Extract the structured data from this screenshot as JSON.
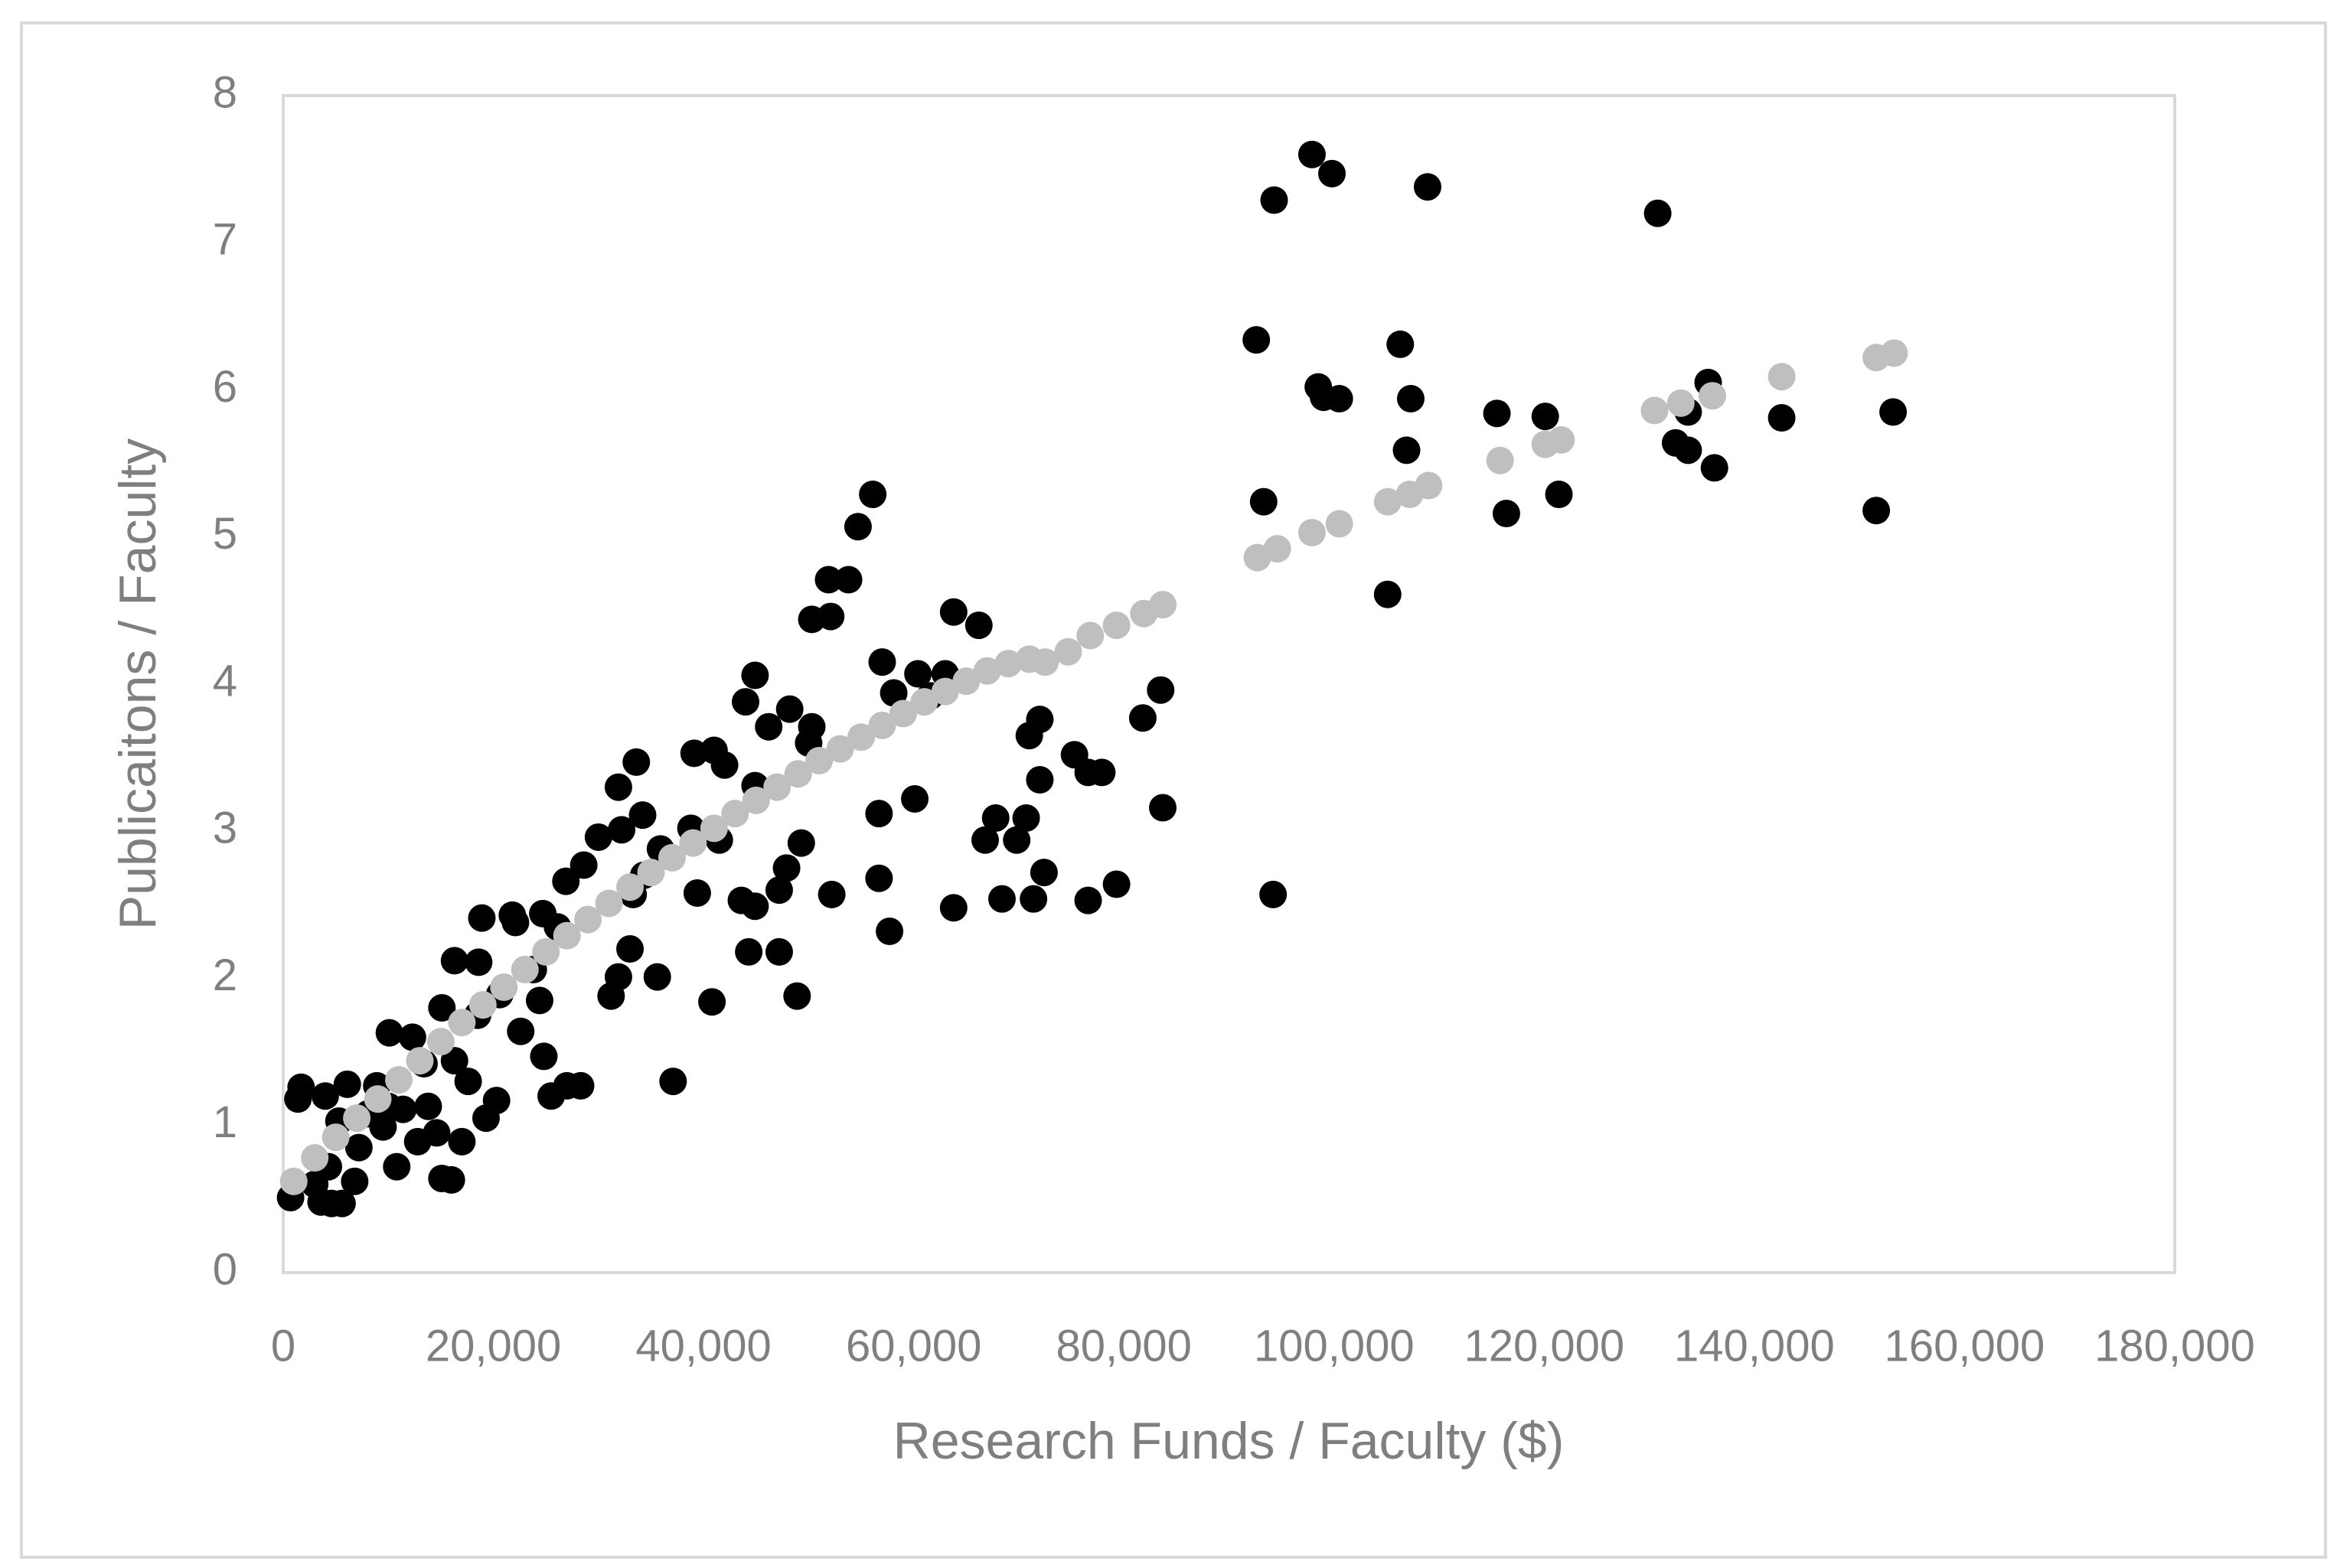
{
  "chart_data": {
    "type": "scatter",
    "xlabel": "Research Funds / Faculty ($)",
    "ylabel": "Publicaitons / Faculty",
    "xlim": [
      0,
      180000
    ],
    "ylim": [
      0,
      8
    ],
    "xticks": [
      0,
      {
        "value": 20000,
        "label": "20,000"
      },
      {
        "value": 40000,
        "label": "40,000"
      },
      {
        "value": 60000,
        "label": "60,000"
      },
      {
        "value": 80000,
        "label": "80,000"
      },
      {
        "value": 100000,
        "label": "100,000"
      },
      {
        "value": 120000,
        "label": "120,000"
      },
      {
        "value": 140000,
        "label": "140,000"
      },
      {
        "value": 160000,
        "label": "160,000"
      },
      {
        "value": 180000,
        "label": "180,000"
      }
    ],
    "yticks": [
      0,
      1,
      2,
      3,
      4,
      5,
      6,
      7,
      8
    ],
    "grid": false,
    "series": [
      {
        "color": "#000000",
        "x": [
          92600,
          93300,
          94300,
          94200,
          97900,
          98500,
          99000,
          99800,
          100500,
          105100,
          106300,
          106900,
          107300,
          108900,
          115500,
          116400,
          120100,
          121400,
          130800,
          132500,
          133700,
          133700,
          135600,
          136200,
          142600,
          151600,
          153200,
          83500,
          83700,
          81800,
          79300,
          77900,
          76600,
          76600,
          75300,
          72000,
          72000,
          72400,
          71400,
          71000,
          70700,
          69800,
          68400,
          67800,
          66800,
          66200,
          63800,
          63800,
          63000,
          60400,
          61600,
          60100,
          58100,
          57700,
          57000,
          56700,
          56100,
          56700,
          54700,
          53800,
          51900,
          52100,
          50300,
          52200,
          50300,
          50000,
          49300,
          48900,
          47900,
          47200,
          47200,
          48200,
          46200,
          44900,
          44900,
          44000,
          44900,
          44300,
          43600,
          42000,
          41500,
          41000,
          40800,
          39400,
          39100,
          38800,
          37100,
          35900,
          35600,
          34300,
          33600,
          33300,
          33000,
          34200,
          31900,
          32200,
          31200,
          31900,
          30000,
          28600,
          26900,
          28300,
          27000,
          25500,
          26100,
          24700,
          24800,
          24400,
          23800,
          22600,
          22100,
          21800,
          20600,
          20300,
          19300,
          18900,
          18600,
          18500,
          17600,
          17000,
          16300,
          16300,
          16000,
          15100,
          15100,
          14600,
          13800,
          13400,
          12800,
          12300,
          11400,
          10800,
          10100,
          10000,
          9500,
          8900,
          8100,
          7200,
          6800,
          6100,
          5600,
          4600,
          4300,
          3600,
          3000,
          1700,
          1400,
          700,
          4000,
          5300
        ],
        "values": [
          6.34,
          5.24,
          7.29,
          2.57,
          7.6,
          6.02,
          5.95,
          7.47,
          5.94,
          4.61,
          6.31,
          5.59,
          5.94,
          7.38,
          5.84,
          5.16,
          5.82,
          5.29,
          7.2,
          5.64,
          5.59,
          5.85,
          6.05,
          5.47,
          5.81,
          5.18,
          5.85,
          3.96,
          3.16,
          3.77,
          2.64,
          3.4,
          3.4,
          2.53,
          3.52,
          3.76,
          3.35,
          2.72,
          2.54,
          3.65,
          3.09,
          2.94,
          2.54,
          3.09,
          2.94,
          4.4,
          4.49,
          2.48,
          4.07,
          4.07,
          3.92,
          3.22,
          3.94,
          2.32,
          4.15,
          2.68,
          5.29,
          3.12,
          5.07,
          4.71,
          4.71,
          4.46,
          4.44,
          2.57,
          3.71,
          3.6,
          2.92,
          1.88,
          2.75,
          2.18,
          2.6,
          3.83,
          3.71,
          4.06,
          3.31,
          3.88,
          2.49,
          2.18,
          2.53,
          3.45,
          2.94,
          3.55,
          1.84,
          2.58,
          3.53,
          3.02,
          1.3,
          2.88,
          2.01,
          2.7,
          3.47,
          2.57,
          2.2,
          3.11,
          3.3,
          3.01,
          1.88,
          2.01,
          2.96,
          2.77,
          2.66,
          1.27,
          1.27,
          1.2,
          2.35,
          2.44,
          1.47,
          1.85,
          2.06,
          1.64,
          2.38,
          2.43,
          1.89,
          1.17,
          1.05,
          2.41,
          2.11,
          1.75,
          1.3,
          0.89,
          2.12,
          1.44,
          0.63,
          0.64,
          1.8,
          0.95,
          1.13,
          1.42,
          0.89,
          1.6,
          1.11,
          0.72,
          1.63,
          1.13,
          0.99,
          1.27,
          1.08,
          0.85,
          0.62,
          1.28,
          0.47,
          0.47,
          0.72,
          0.48,
          0.6,
          1.26,
          1.18,
          0.51,
          1.2,
          1.03
        ]
      },
      {
        "color": "#bfbfbf",
        "x": [
          1000,
          3000,
          5000,
          7000,
          9000,
          11000,
          13000,
          15000,
          17000,
          19000,
          21000,
          23000,
          25000,
          27000,
          29000,
          31000,
          33000,
          35000,
          37000,
          39000,
          41000,
          43000,
          45000,
          47000,
          49000,
          51000,
          53000,
          55000,
          57000,
          59000,
          61000,
          63000,
          65000,
          67000,
          69000,
          71000,
          72500,
          74700,
          76800,
          79300,
          81900,
          83700,
          92700,
          94600,
          97900,
          100500,
          105100,
          107200,
          109000,
          115800,
          120100,
          121600,
          130500,
          133000,
          136000,
          142600,
          151600,
          153300
        ],
        "values": [
          0.62,
          0.78,
          0.92,
          1.05,
          1.18,
          1.31,
          1.44,
          1.57,
          1.7,
          1.82,
          1.94,
          2.06,
          2.18,
          2.29,
          2.4,
          2.51,
          2.62,
          2.72,
          2.82,
          2.92,
          3.02,
          3.12,
          3.21,
          3.3,
          3.39,
          3.48,
          3.56,
          3.64,
          3.72,
          3.8,
          3.88,
          3.95,
          4.02,
          4.09,
          4.14,
          4.17,
          4.15,
          4.22,
          4.33,
          4.4,
          4.48,
          4.54,
          4.86,
          4.92,
          5.03,
          5.09,
          5.24,
          5.29,
          5.35,
          5.52,
          5.63,
          5.66,
          5.86,
          5.91,
          5.96,
          6.09,
          6.22,
          6.25
        ]
      }
    ]
  }
}
